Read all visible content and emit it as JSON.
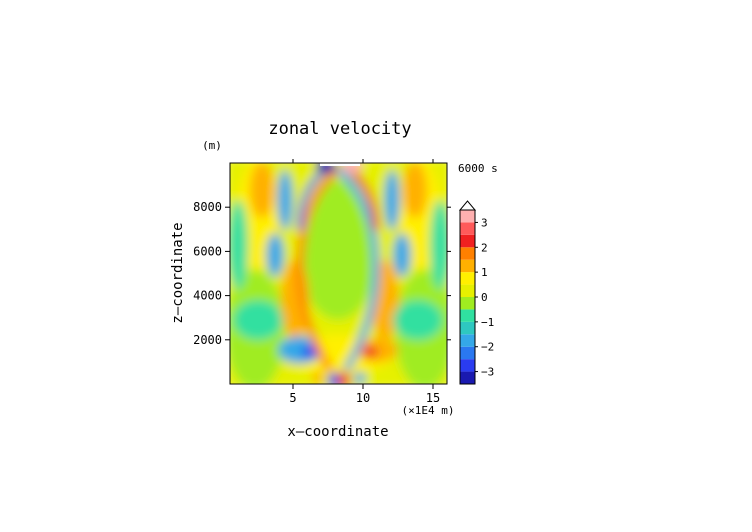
{
  "chart_data": {
    "type": "heatmap",
    "title": "zonal velocity",
    "xlabel": "x—coordinate",
    "ylabel": "z—coordinate",
    "x_unit": "(×1E4 m)",
    "y_unit": "(m)",
    "time_label": "6000 s",
    "xlim": [
      0.5,
      16
    ],
    "ylim": [
      0,
      10000
    ],
    "x_ticks": [
      5,
      10,
      15
    ],
    "y_ticks": [
      2000,
      4000,
      6000,
      8000
    ],
    "colorbar": {
      "levels": [
        -3.5,
        -3,
        -2.5,
        -2,
        -1.5,
        -1,
        -0.5,
        0,
        0.5,
        1,
        1.5,
        2,
        2.5,
        3,
        3.5
      ],
      "labels": [
        "3",
        "2",
        "1",
        "0",
        "−1",
        "−2",
        "−3"
      ],
      "label_values": [
        3,
        2,
        1,
        0,
        -1,
        -2,
        -3
      ],
      "colors": [
        "#1a1ab0",
        "#2a3cf0",
        "#2a78f0",
        "#34a8e8",
        "#2ec8c0",
        "#30e0a0",
        "#a0ec20",
        "#e6f000",
        "#fff000",
        "#ffb000",
        "#ff8000",
        "#f02020",
        "#ff5a5a",
        "#ffb0b0"
      ]
    }
  }
}
